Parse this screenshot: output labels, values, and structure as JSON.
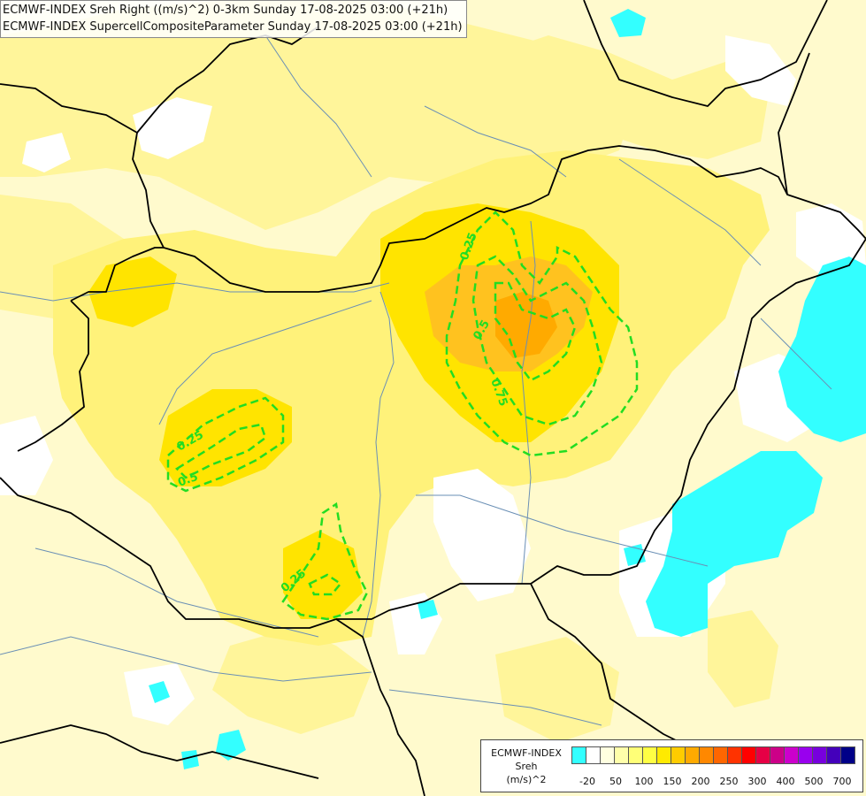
{
  "header": {
    "line1": "ECMWF-INDEX Sreh Right ((m/s)^2) 0-3km Sunday 17-08-2025 03:00 (+21h)",
    "line2": "ECMWF-INDEX SupercellCompositeParameter Sunday 17-08-2025 03:00 (+21h)"
  },
  "legend": {
    "line1": "ECMWF-INDEX",
    "line2": "Sreh",
    "line3": "(m/s)^2",
    "colors": [
      "#33ffff",
      "#ffffff",
      "#ffffe0",
      "#ffffaa",
      "#ffff77",
      "#ffff44",
      "#ffea00",
      "#ffcc00",
      "#ffaa00",
      "#ff8800",
      "#ff6600",
      "#ff3300",
      "#ff0000",
      "#e60045",
      "#cc0088",
      "#cc00cc",
      "#9900ee",
      "#7700dd",
      "#4400bb",
      "#000088"
    ],
    "ticks": [
      "-20",
      "50",
      "100",
      "150",
      "200",
      "250",
      "300",
      "400",
      "500",
      "700"
    ]
  },
  "contour_labels": [
    "0.25",
    "0.5",
    "0.75",
    "0.25",
    "0.5",
    "0.25"
  ],
  "colors": {
    "background": "#fffacd",
    "yellow": "#fff27a",
    "deep_yellow": "#ffe400",
    "orange": "#ffc21f",
    "cyan": "#33ffff",
    "contour": "#22dd22",
    "border": "#000000",
    "river": "#6a8fb5"
  }
}
